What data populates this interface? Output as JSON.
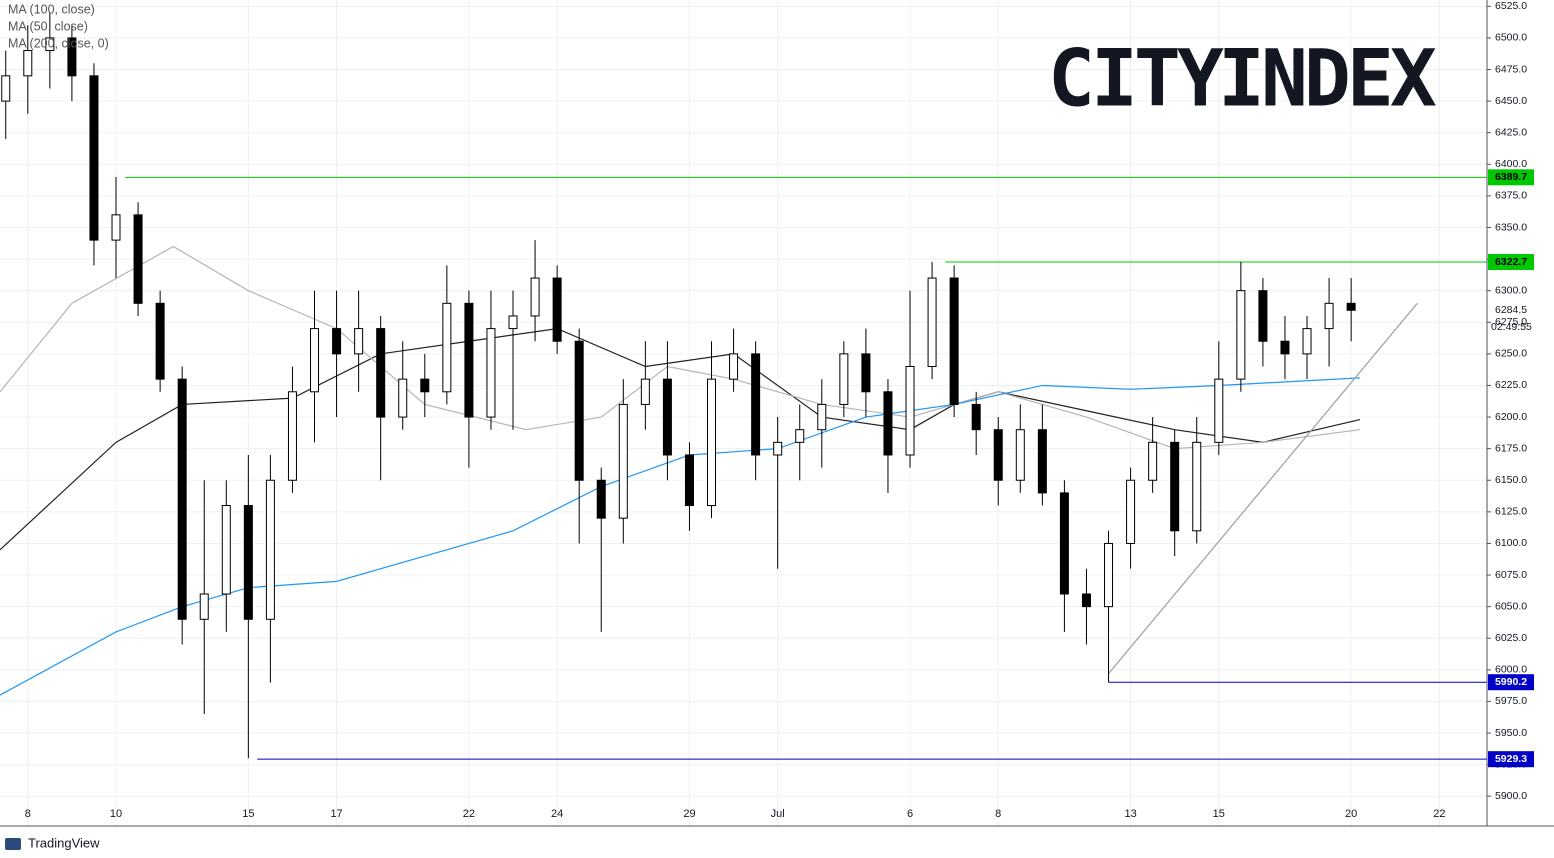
{
  "chart_data": {
    "type": "candlestick",
    "logo": {
      "dark": "CITY",
      "light": "INDEX",
      "dark_color": "#111111",
      "light_color": "#f5d10a"
    },
    "footer": "TradingView",
    "legend_corner": "top-left",
    "grid": true,
    "up_color": "#ffffff",
    "down_color": "#000000",
    "xlim": [
      -0.63,
      33.08
    ],
    "ylim": [
      5897,
      6530
    ],
    "xticks": [
      {
        "value": 0,
        "label": "8"
      },
      {
        "value": 2,
        "label": "10"
      },
      {
        "value": 5,
        "label": "15"
      },
      {
        "value": 7,
        "label": "17"
      },
      {
        "value": 10,
        "label": "22"
      },
      {
        "value": 12,
        "label": "24"
      },
      {
        "value": 15,
        "label": "29"
      },
      {
        "value": 17,
        "label": "Jul"
      },
      {
        "value": 20,
        "label": "6"
      },
      {
        "value": 22,
        "label": "8"
      },
      {
        "value": 25,
        "label": "13"
      },
      {
        "value": 27,
        "label": "15"
      },
      {
        "value": 30,
        "label": "20"
      },
      {
        "value": 32,
        "label": "22"
      }
    ],
    "yticks": [
      {
        "value": 5900,
        "label": "5900.0"
      },
      {
        "value": 5925,
        "label": "5925.0"
      },
      {
        "value": 5950,
        "label": "5950.0"
      },
      {
        "value": 5975,
        "label": "5975.0"
      },
      {
        "value": 6000,
        "label": "6000.0"
      },
      {
        "value": 6025,
        "label": "6025.0"
      },
      {
        "value": 6050,
        "label": "6050.0"
      },
      {
        "value": 6075,
        "label": "6075.0"
      },
      {
        "value": 6100,
        "label": "6100.0"
      },
      {
        "value": 6125,
        "label": "6125.0"
      },
      {
        "value": 6150,
        "label": "6150.0"
      },
      {
        "value": 6175,
        "label": "6175.0"
      },
      {
        "value": 6200,
        "label": "6200.0"
      },
      {
        "value": 6225,
        "label": "6225.0"
      },
      {
        "value": 6250,
        "label": "6250.0"
      },
      {
        "value": 6275,
        "label": "6275.0"
      },
      {
        "value": 6300,
        "label": "6300.0"
      },
      {
        "value": 6325,
        "label": "6325.0"
      },
      {
        "value": 6350,
        "label": "6350.0"
      },
      {
        "value": 6375,
        "label": "6375.0"
      },
      {
        "value": 6400,
        "label": "6400.0"
      },
      {
        "value": 6425,
        "label": "6425.0"
      },
      {
        "value": 6450,
        "label": "6450.0"
      },
      {
        "value": 6475,
        "label": "6475.0"
      },
      {
        "value": 6500,
        "label": "6500.0"
      },
      {
        "value": 6525,
        "label": "6525.0"
      }
    ],
    "x": [
      -0.5,
      0,
      0.5,
      1,
      1.5,
      2,
      2.5,
      3,
      3.5,
      4,
      4.5,
      5,
      5.5,
      6,
      6.5,
      7,
      7.5,
      8,
      8.5,
      9,
      9.5,
      10,
      10.5,
      11,
      11.5,
      12,
      12.5,
      13,
      13.5,
      14,
      14.5,
      15,
      15.5,
      16,
      16.5,
      17,
      17.5,
      18,
      18.5,
      19,
      19.5,
      20,
      20.5,
      21,
      21.5,
      22,
      22.5,
      23,
      23.5,
      24,
      24.5,
      25,
      25.5,
      26,
      26.5,
      27,
      27.5,
      28,
      28.5,
      29,
      29.5,
      30
    ],
    "open": [
      6450,
      6470,
      6490,
      6500,
      6470,
      6340,
      6360,
      6290,
      6230,
      6040,
      6060,
      6130,
      6040,
      6150,
      6220,
      6270,
      6250,
      6270,
      6200,
      6230,
      6220,
      6290,
      6200,
      6270,
      6280,
      6310,
      6260,
      6150,
      6120,
      6210,
      6230,
      6170,
      6130,
      6230,
      6250,
      6170,
      6180,
      6190,
      6210,
      6250,
      6220,
      6170,
      6240,
      6310,
      6210,
      6190,
      6150,
      6190,
      6140,
      6060,
      6050,
      6100,
      6150,
      6180,
      6110,
      6180,
      6230,
      6300,
      6260,
      6250,
      6270,
      6290
    ],
    "high": [
      6490,
      6510,
      6520,
      6510,
      6480,
      6390,
      6370,
      6300,
      6240,
      6150,
      6150,
      6170,
      6170,
      6240,
      6300,
      6300,
      6300,
      6280,
      6260,
      6250,
      6320,
      6300,
      6300,
      6300,
      6340,
      6320,
      6270,
      6160,
      6230,
      6260,
      6260,
      6180,
      6260,
      6270,
      6260,
      6200,
      6210,
      6230,
      6260,
      6270,
      6230,
      6300,
      6322.7,
      6320,
      6220,
      6200,
      6210,
      6210,
      6150,
      6080,
      6110,
      6160,
      6200,
      6190,
      6200,
      6260,
      6322.7,
      6310,
      6280,
      6280,
      6310,
      6310
    ],
    "low": [
      6420,
      6440,
      6460,
      6450,
      6320,
      6310,
      6280,
      6220,
      6020,
      5965,
      6030,
      5930,
      5990,
      6140,
      6180,
      6200,
      6220,
      6150,
      6190,
      6200,
      6210,
      6160,
      6190,
      6190,
      6260,
      6250,
      6100,
      6030,
      6100,
      6190,
      6150,
      6110,
      6120,
      6220,
      6150,
      6080,
      6150,
      6160,
      6200,
      6200,
      6140,
      6160,
      6230,
      6200,
      6170,
      6130,
      6140,
      6130,
      6030,
      6020,
      5990.2,
      6080,
      6140,
      6090,
      6100,
      6170,
      6220,
      6240,
      6230,
      6230,
      6240,
      6260
    ],
    "close": [
      6470,
      6490,
      6500,
      6470,
      6340,
      6360,
      6290,
      6230,
      6040,
      6060,
      6130,
      6040,
      6150,
      6220,
      6270,
      6250,
      6270,
      6200,
      6230,
      6220,
      6290,
      6200,
      6270,
      6280,
      6310,
      6260,
      6150,
      6120,
      6210,
      6230,
      6170,
      6130,
      6230,
      6250,
      6170,
      6180,
      6190,
      6210,
      6250,
      6220,
      6170,
      6240,
      6310,
      6210,
      6190,
      6150,
      6190,
      6140,
      6060,
      6050,
      6100,
      6150,
      6180,
      6110,
      6180,
      6230,
      6300,
      6260,
      6250,
      6270,
      6290,
      6284.5
    ],
    "series": [
      {
        "name": "MA (100, close)",
        "color": "#222222",
        "x": [
          -0.63,
          2,
          3.5,
          6,
          8,
          10,
          12,
          14,
          16,
          18,
          20,
          21,
          22,
          24,
          26,
          28,
          30.2
        ],
        "values": [
          6095,
          6180,
          6210,
          6215,
          6250,
          6260,
          6270,
          6240,
          6250,
          6200,
          6190,
          6210,
          6220,
          6205,
          6190,
          6180,
          6198
        ]
      },
      {
        "name": "MA (50, close)",
        "color": "#b5b5b5",
        "x": [
          -0.63,
          1,
          3.3,
          5,
          7,
          9,
          11.3,
          13,
          14.5,
          16,
          18,
          20,
          22,
          24,
          26,
          28,
          30.2
        ],
        "values": [
          6220,
          6290,
          6335,
          6300,
          6270,
          6210,
          6190,
          6200,
          6240,
          6230,
          6210,
          6200,
          6220,
          6200,
          6175,
          6180,
          6190
        ]
      },
      {
        "name": "MA (200, close, 0)",
        "color": "#2196f3",
        "x": [
          -0.63,
          2,
          3.5,
          5,
          7,
          9,
          11,
          13,
          15,
          17,
          19,
          21,
          23,
          25,
          27,
          30.2
        ],
        "values": [
          5980,
          6030,
          6050,
          6065,
          6070,
          6090,
          6110,
          6145,
          6170,
          6175,
          6200,
          6210,
          6225,
          6222,
          6225,
          6231
        ]
      }
    ],
    "levels": [
      {
        "value": 6389.7,
        "x_start": 2.2,
        "color": "#00c800"
      },
      {
        "value": 6322.7,
        "x_start": 20.8,
        "color": "#00c800"
      },
      {
        "value": 5990.2,
        "x_start": 24.5,
        "color": "#0000c8"
      },
      {
        "value": 5929.3,
        "x_start": 5.2,
        "color": "#0000c8"
      }
    ],
    "trendline": {
      "color": "#9e9e9e",
      "x": [
        24.5,
        31.5
      ],
      "values": [
        5997,
        6290
      ]
    },
    "countdown": "02:49:55"
  }
}
